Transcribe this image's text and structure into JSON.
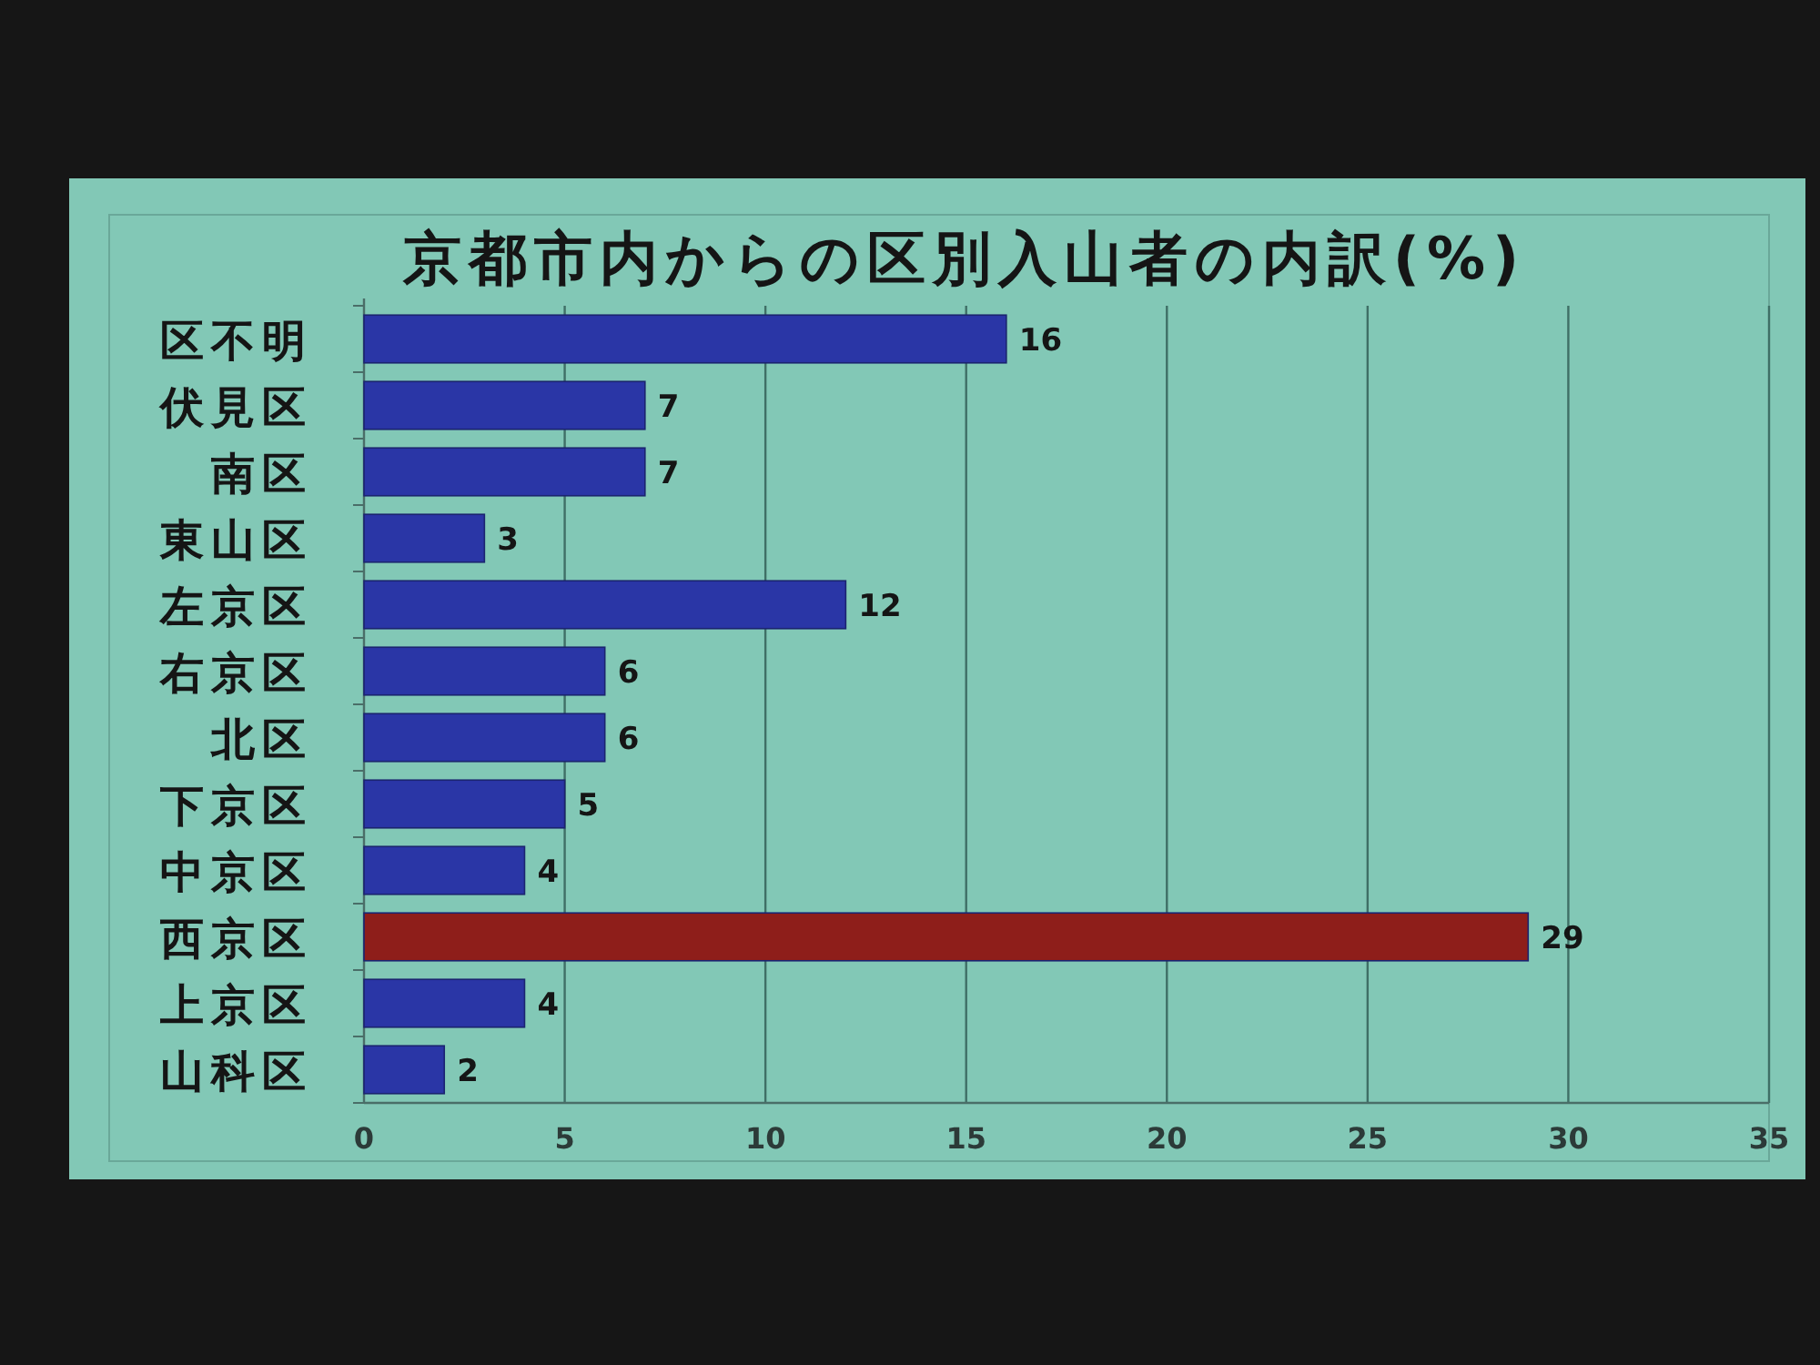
{
  "chart_data": {
    "type": "bar",
    "orientation": "horizontal",
    "title": "京都市内からの区別入山者の内訳(%)",
    "categories": [
      "区不明",
      "伏見区",
      "南区",
      "東山区",
      "左京区",
      "右京区",
      "北区",
      "下京区",
      "中京区",
      "西京区",
      "上京区",
      "山科区"
    ],
    "values": [
      16,
      7,
      7,
      3,
      12,
      6,
      6,
      5,
      4,
      29,
      4,
      2
    ],
    "colors": [
      "#2a36a6",
      "#2a36a6",
      "#2a36a6",
      "#2a36a6",
      "#2a36a6",
      "#2a36a6",
      "#2a36a6",
      "#2a36a6",
      "#2a36a6",
      "#8e1e1a",
      "#2a36a6",
      "#2a36a6"
    ],
    "xlim": [
      0,
      35
    ],
    "xticks": [
      0,
      5,
      10,
      15,
      20,
      25,
      30,
      35
    ],
    "grid": "x",
    "data_labels": true
  }
}
